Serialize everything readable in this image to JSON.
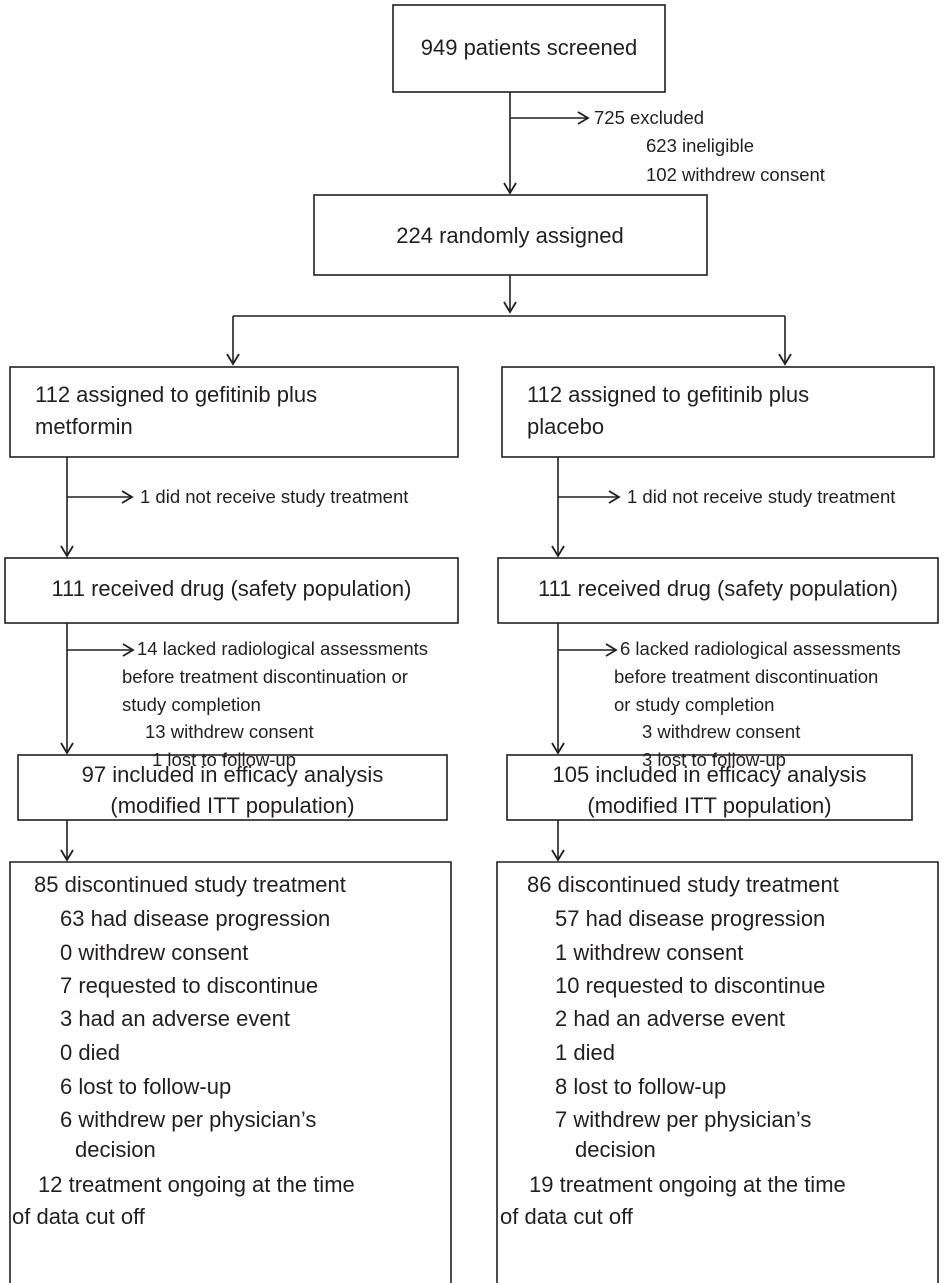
{
  "screened": {
    "text": "949 patients screened"
  },
  "excluded": {
    "lines": [
      "725 excluded",
      "623 ineligible",
      "102 withdrew consent"
    ]
  },
  "randomized": {
    "text": "224 randomly assigned"
  },
  "arms": [
    {
      "assigned": {
        "lines": [
          "112 assigned to gefitinib plus",
          "metformin"
        ]
      },
      "not_treated": "1 did not receive study treatment",
      "safety": "111 received drug (safety population)",
      "lacked": {
        "lines": [
          "14 lacked radiological assessments",
          "before treatment discontinuation or",
          "study completion",
          "13 withdrew consent",
          "1 lost to follow-up"
        ]
      },
      "efficacy": {
        "lines": [
          "97 included in efficacy analysis",
          "(modified ITT population)"
        ]
      },
      "discontinued": {
        "lines": [
          "85 discontinued study treatment",
          "63 had disease progression",
          "0 withdrew consent",
          "7 requested to discontinue",
          "3 had an adverse event",
          "0 died",
          "6 lost to follow-up",
          "6 withdrew per physician’s",
          "decision",
          "12 treatment ongoing at the time",
          "of data cut off"
        ]
      }
    },
    {
      "assigned": {
        "lines": [
          "112 assigned to gefitinib plus",
          "placebo"
        ]
      },
      "not_treated": "1 did not receive study treatment",
      "safety": "111 received drug (safety population)",
      "lacked": {
        "lines": [
          "6 lacked radiological assessments",
          "before treatment discontinuation",
          "or study completion",
          "3 withdrew consent",
          "3 lost to follow-up"
        ]
      },
      "efficacy": {
        "lines": [
          "105 included in efficacy analysis",
          "(modified ITT population)"
        ]
      },
      "discontinued": {
        "lines": [
          "86 discontinued study treatment",
          "57 had disease progression",
          "1 withdrew consent",
          "10 requested to discontinue",
          "2 had an adverse event",
          "1 died",
          "8 lost to follow-up",
          "7 withdrew per physician’s",
          "decision",
          "19 treatment ongoing at the time",
          "of data cut off"
        ]
      }
    }
  ]
}
